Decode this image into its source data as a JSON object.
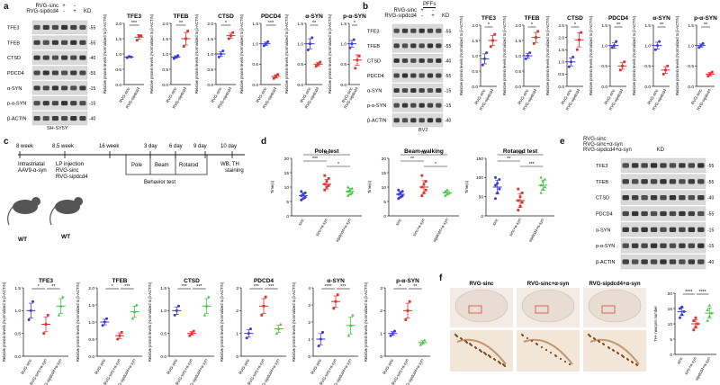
{
  "panel_a": {
    "letter": "a",
    "legend_rows": [
      "RVG-sinc",
      "RVG-sipdcd4"
    ],
    "legend_signs": [
      [
        "+",
        "-"
      ],
      [
        "-",
        "+"
      ]
    ],
    "kd": "KD",
    "blot_labels": [
      "TFE3",
      "TFEB",
      "CTSD",
      "PDCD4",
      "α-SYN",
      "p-α-SYN",
      "β-ACTIN"
    ],
    "mw": [
      "-55",
      "-55",
      "-40",
      "-55",
      "-15",
      "-15",
      "-40"
    ],
    "cell_line": "SH-SY5Y",
    "ylabel": "Relative protein levels (Normalized to β-ACTIN)",
    "xcats": [
      "RVG-sinc",
      "RVG-sipdcd4"
    ]
  },
  "panel_b": {
    "letter": "b",
    "pffs": "PFFs",
    "legend_rows": [
      "RVG-sinc",
      "RVG-sipdcd4"
    ],
    "legend_signs": [
      [
        "+",
        "-"
      ],
      [
        "-",
        "+"
      ]
    ],
    "kd": "KD",
    "blot_labels": [
      "TFE3",
      "TFEB",
      "CTSD",
      "PDCD4",
      "α-SYN",
      "p-α-SYN",
      "β-ACTIN"
    ],
    "mw": [
      "-55",
      "-55",
      "-40",
      "-55",
      "-15",
      "-15",
      "-40"
    ],
    "cell_line": "BV2",
    "ylabel": "Relative protein levels (Normalized to β-ACTIN)",
    "xcats": [
      "RVG-sinc",
      "RVG-sipdcd4"
    ]
  },
  "panel_c": {
    "letter": "c",
    "weeks": [
      "8 week",
      "8.5 week",
      "16 week",
      "3 day",
      "6 day",
      "9 day",
      "10 day"
    ],
    "intrastriatal": [
      "Intrastriatal",
      "AAV9-α-syn"
    ],
    "lp": [
      "LP injection",
      "RVG-sinc",
      "RVG-sipdcd4"
    ],
    "tests": [
      "Pole",
      "Beam",
      "Rotarod"
    ],
    "behavior": "Behavior test",
    "wb": [
      "WB, TH",
      "staining"
    ],
    "wt": "WT"
  },
  "panel_d": {
    "letter": "d",
    "ylabel": "Time(s)",
    "xcats": [
      "sinc",
      "sinc+α-syn",
      "sipdcd4+α-syn"
    ]
  },
  "panel_e": {
    "letter": "e",
    "legend_rows": [
      "RVG-sinc",
      "RVG-sinc+α-syn",
      "RVG-sipdcd4+α-syn"
    ],
    "kd": "KD",
    "blot_labels": [
      "TFE3",
      "TFEB",
      "CTSD",
      "PDCD4",
      "α-SYN",
      "p-α-SYN",
      "β-ACTIN"
    ],
    "mw": [
      "-55",
      "-55",
      "-40",
      "-55",
      "-15",
      "-15",
      "-40"
    ]
  },
  "panel_f": {
    "letter": "f",
    "cols": [
      "RVG-sinc",
      "RVG-sinc+α-syn",
      "RVG-sipdcd4+α-syn"
    ],
    "ylabel": "TH+ neurons number",
    "xcats": [
      "sinc",
      "sinc+α-syn",
      "sipdcd4+α-syn"
    ],
    "sig": "****"
  },
  "chart_data": [
    {
      "id": "a-TFE3",
      "type": "scatter",
      "title": "TFE3",
      "categories": [
        "RVG-sinc",
        "RVG-sipdcd4"
      ],
      "ylim": [
        0,
        2.0
      ],
      "ticks": [
        "0.0",
        "0.5",
        "1.0",
        "1.5",
        "2.0"
      ],
      "means": [
        0.9,
        1.55
      ],
      "points": [
        [
          0.88,
          0.92,
          0.9
        ],
        [
          1.45,
          1.6,
          1.6
        ]
      ],
      "sig": "***",
      "colors": [
        "#3a3ad8",
        "#e03030"
      ]
    },
    {
      "id": "a-TFEB",
      "type": "scatter",
      "title": "TFEB",
      "categories": [
        "RVG-sinc",
        "RVG-sipdcd4"
      ],
      "ylim": [
        0,
        2.0
      ],
      "ticks": [
        "0.0",
        "0.5",
        "1.0",
        "1.5",
        "2.0"
      ],
      "means": [
        0.9,
        1.5
      ],
      "points": [
        [
          0.85,
          0.9,
          0.95
        ],
        [
          1.25,
          1.5,
          1.75
        ]
      ],
      "sig": "**",
      "colors": [
        "#3a3ad8",
        "#e03030"
      ]
    },
    {
      "id": "a-CTSD",
      "type": "scatter",
      "title": "CTSD",
      "categories": [
        "RVG-sinc",
        "RVG-sipdcd4"
      ],
      "ylim": [
        0,
        2.0
      ],
      "ticks": [
        "0.0",
        "0.5",
        "1.0",
        "1.5",
        "2.0"
      ],
      "means": [
        1.0,
        1.6
      ],
      "points": [
        [
          0.9,
          1.0,
          1.1
        ],
        [
          1.5,
          1.6,
          1.7
        ]
      ],
      "sig": "*",
      "colors": [
        "#3a3ad8",
        "#e03030"
      ]
    },
    {
      "id": "a-PDCD4",
      "type": "scatter",
      "title": "PDCD4",
      "categories": [
        "RVG-sinc",
        "RVG-sipdcd4"
      ],
      "ylim": [
        0,
        1.5
      ],
      "ticks": [
        "0.0",
        "0.5",
        "1.0",
        "1.5"
      ],
      "means": [
        1.0,
        0.2
      ],
      "points": [
        [
          0.95,
          1.0,
          1.05
        ],
        [
          0.15,
          0.2,
          0.25
        ]
      ],
      "sig": "***",
      "colors": [
        "#3a3ad8",
        "#e03030"
      ]
    },
    {
      "id": "a-aSYN",
      "type": "scatter",
      "title": "α-SYN",
      "categories": [
        "RVG-sinc",
        "RVG-sipdcd4"
      ],
      "ylim": [
        0,
        1.5
      ],
      "ticks": [
        "0.0",
        "0.5",
        "1.0",
        "1.5"
      ],
      "means": [
        1.0,
        0.5
      ],
      "points": [
        [
          0.85,
          1.0,
          1.15
        ],
        [
          0.45,
          0.5,
          0.55
        ]
      ],
      "sig": "**",
      "colors": [
        "#3a3ad8",
        "#e03030"
      ]
    },
    {
      "id": "a-paSYN",
      "type": "scatter",
      "title": "p-α-SYN",
      "categories": [
        "RVG-sinc",
        "RVG-sipdcd4"
      ],
      "ylim": [
        0,
        1.5
      ],
      "ticks": [
        "0.0",
        "0.5",
        "1.0",
        "1.5"
      ],
      "means": [
        1.0,
        0.6
      ],
      "points": [
        [
          0.9,
          1.0,
          1.1
        ],
        [
          0.4,
          0.6,
          0.7
        ]
      ],
      "sig": "*",
      "colors": [
        "#3a3ad8",
        "#e03030"
      ]
    },
    {
      "id": "b-TFE3",
      "type": "scatter",
      "title": "TFE3",
      "categories": [
        "RVG-sinc",
        "RVG-sipdcd4"
      ],
      "ylim": [
        0,
        2.0
      ],
      "ticks": [
        "0.0",
        "0.5",
        "1.0",
        "1.5",
        "2.0"
      ],
      "means": [
        0.9,
        1.5
      ],
      "points": [
        [
          0.7,
          0.9,
          1.1
        ],
        [
          1.3,
          1.5,
          1.7
        ]
      ],
      "sig": "*",
      "colors": [
        "#3a3ad8",
        "#e03030"
      ]
    },
    {
      "id": "b-TFEB",
      "type": "scatter",
      "title": "TFEB",
      "categories": [
        "RVG-sinc",
        "RVG-sipdcd4"
      ],
      "ylim": [
        0,
        2.0
      ],
      "ticks": [
        "0.0",
        "0.5",
        "1.0",
        "1.5",
        "2.0"
      ],
      "means": [
        1.0,
        1.6
      ],
      "points": [
        [
          0.9,
          1.0,
          1.1
        ],
        [
          1.4,
          1.6,
          1.8
        ]
      ],
      "sig": "*",
      "colors": [
        "#3a3ad8",
        "#e03030"
      ]
    },
    {
      "id": "b-CTSD",
      "type": "scatter",
      "title": "CTSD",
      "categories": [
        "RVG-sinc",
        "RVG-sipdcd4"
      ],
      "ylim": [
        0,
        2.5
      ],
      "ticks": [
        "0.0",
        "0.5",
        "1.0",
        "1.5",
        "2.0",
        "2.5"
      ],
      "means": [
        1.0,
        1.9
      ],
      "points": [
        [
          0.8,
          1.0,
          1.2
        ],
        [
          1.5,
          1.9,
          2.2
        ]
      ],
      "sig": "*",
      "colors": [
        "#3a3ad8",
        "#e03030"
      ]
    },
    {
      "id": "b-PDCD4",
      "type": "scatter",
      "title": "PDCD4",
      "categories": [
        "RVG-sinc",
        "RVG-sipdcd4"
      ],
      "ylim": [
        0,
        1.5
      ],
      "ticks": [
        "0.0",
        "0.5",
        "1.0",
        "1.5"
      ],
      "means": [
        1.0,
        0.5
      ],
      "points": [
        [
          0.95,
          1.0,
          1.1
        ],
        [
          0.4,
          0.5,
          0.6
        ]
      ],
      "sig": "**",
      "colors": [
        "#3a3ad8",
        "#e03030"
      ]
    },
    {
      "id": "b-aSYN",
      "type": "scatter",
      "title": "α-SYN",
      "categories": [
        "RVG-sinc",
        "RVG-sipdcd4"
      ],
      "ylim": [
        0,
        1.5
      ],
      "ticks": [
        "0.0",
        "0.5",
        "1.0",
        "1.5"
      ],
      "means": [
        1.0,
        0.4
      ],
      "points": [
        [
          0.9,
          1.0,
          1.1
        ],
        [
          0.3,
          0.4,
          0.5
        ]
      ],
      "sig": "**",
      "colors": [
        "#3a3ad8",
        "#e03030"
      ]
    },
    {
      "id": "b-paSYN",
      "type": "scatter",
      "title": "p-α-SYN",
      "categories": [
        "RVG-sinc",
        "RVG-sipdcd4"
      ],
      "ylim": [
        0,
        1.5
      ],
      "ticks": [
        "0.0",
        "0.5",
        "1.0",
        "1.5"
      ],
      "means": [
        1.0,
        0.3
      ],
      "points": [
        [
          0.95,
          1.0,
          1.05
        ],
        [
          0.25,
          0.3,
          0.35
        ]
      ],
      "sig": "**",
      "colors": [
        "#3a3ad8",
        "#e03030"
      ]
    },
    {
      "id": "d-Pole",
      "type": "scatter",
      "title": "Pole test",
      "categories": [
        "sinc",
        "sinc+α-syn",
        "sipdcd4+α-syn"
      ],
      "ylim": [
        0,
        20
      ],
      "ticks": [
        "0",
        "5",
        "10",
        "15",
        "20"
      ],
      "means": [
        7,
        11,
        8.5
      ],
      "points": [
        [
          5.5,
          6,
          6.5,
          7,
          7.5,
          8,
          8.5
        ],
        [
          9,
          10,
          10.5,
          11,
          12,
          13,
          14
        ],
        [
          7,
          7.5,
          8,
          8.5,
          9,
          9.5,
          10
        ]
      ],
      "sig": [
        "ns",
        "***",
        "*"
      ],
      "colors": [
        "#3a3ad8",
        "#e03030",
        "#3cc43c"
      ]
    },
    {
      "id": "d-Beam",
      "type": "scatter",
      "title": "Beam-walking",
      "categories": [
        "sinc",
        "sinc+α-syn",
        "sipdcd4+α-syn"
      ],
      "ylim": [
        0,
        20
      ],
      "ticks": [
        "0",
        "5",
        "10",
        "15",
        "20"
      ],
      "means": [
        7.5,
        10,
        8
      ],
      "points": [
        [
          6,
          6.5,
          7,
          7.5,
          8,
          8.5,
          9
        ],
        [
          7,
          8,
          9,
          10,
          11,
          12,
          14
        ],
        [
          7,
          7.5,
          8,
          8.5,
          9
        ]
      ],
      "sig": [
        "ns",
        "**",
        "*"
      ],
      "colors": [
        "#3a3ad8",
        "#e03030",
        "#3cc43c"
      ]
    },
    {
      "id": "d-Rotarod",
      "type": "scatter",
      "title": "Rotarod test",
      "categories": [
        "sinc",
        "sinc+α-syn",
        "sipdcd4+α-syn"
      ],
      "ylim": [
        0,
        150
      ],
      "ticks": [
        "0",
        "50",
        "100",
        "150"
      ],
      "means": [
        75,
        40,
        80
      ],
      "points": [
        [
          45,
          60,
          70,
          80,
          85,
          95,
          100
        ],
        [
          15,
          25,
          35,
          40,
          50,
          60,
          70
        ],
        [
          60,
          70,
          75,
          80,
          90,
          95,
          100
        ]
      ],
      "sig": [
        "ns",
        "**",
        "***"
      ],
      "colors": [
        "#3a3ad8",
        "#e03030",
        "#3cc43c"
      ]
    },
    {
      "id": "e-TFE3",
      "type": "scatter",
      "title": "TFE3",
      "categories": [
        "RVG-sinc",
        "RVG-sinc+α-syn",
        "RVG-sipdcd4+α-syn"
      ],
      "ylim": [
        0,
        1.5
      ],
      "ticks": [
        "0.0",
        "0.5",
        "1.0",
        "1.5"
      ],
      "means": [
        1.0,
        0.7,
        1.1
      ],
      "points": [
        [
          0.8,
          1.0,
          1.2
        ],
        [
          0.5,
          0.7,
          0.9
        ],
        [
          0.9,
          1.1,
          1.3
        ]
      ],
      "sig": [
        "*",
        "**"
      ],
      "colors": [
        "#3a3ad8",
        "#e03030",
        "#3cc43c"
      ]
    },
    {
      "id": "e-TFEB",
      "type": "scatter",
      "title": "TFEB",
      "categories": [
        "RVG-sinc",
        "RVG-sinc+α-syn",
        "RVG-sipdcd4+α-syn"
      ],
      "ylim": [
        0,
        2.0
      ],
      "ticks": [
        "0.0",
        "0.5",
        "1.0",
        "1.5",
        "2.0"
      ],
      "means": [
        1.0,
        0.6,
        1.3
      ],
      "points": [
        [
          0.9,
          1.0,
          1.1
        ],
        [
          0.5,
          0.6,
          0.7
        ],
        [
          1.1,
          1.3,
          1.5
        ]
      ],
      "sig": [
        "*",
        "***"
      ],
      "colors": [
        "#3a3ad8",
        "#e03030",
        "#3cc43c"
      ]
    },
    {
      "id": "e-CTSD",
      "type": "scatter",
      "title": "CTSD",
      "categories": [
        "RVG-sinc",
        "RVG-sinc+α-syn",
        "RVG-sipdcd4+α-syn"
      ],
      "ylim": [
        0,
        1.5
      ],
      "ticks": [
        "0.0",
        "0.5",
        "1.0",
        "1.5"
      ],
      "means": [
        1.0,
        0.5,
        1.1
      ],
      "points": [
        [
          0.9,
          1.0,
          1.1
        ],
        [
          0.45,
          0.5,
          0.55
        ],
        [
          0.9,
          1.1,
          1.3
        ]
      ],
      "sig": [
        "***",
        "***"
      ],
      "colors": [
        "#3a3ad8",
        "#e03030",
        "#3cc43c"
      ]
    },
    {
      "id": "e-PDCD4",
      "type": "scatter",
      "title": "PDCD4",
      "categories": [
        "RVG-sinc",
        "RVG-sinc+α-syn",
        "RVG-sipdcd4+α-syn"
      ],
      "ylim": [
        0,
        3
      ],
      "ticks": [
        "0",
        "1",
        "2",
        "3"
      ],
      "means": [
        1.0,
        2.2,
        1.2
      ],
      "points": [
        [
          0.8,
          1.0,
          1.2
        ],
        [
          1.8,
          2.2,
          2.6
        ],
        [
          1.0,
          1.2,
          1.4
        ]
      ],
      "sig": [
        "***",
        "***"
      ],
      "colors": [
        "#3a3ad8",
        "#e03030",
        "#3cc43c"
      ]
    },
    {
      "id": "e-aSYN",
      "type": "scatter",
      "title": "α-SYN",
      "categories": [
        "RVG-sinc",
        "RVG-sinc+α-syn",
        "RVG-sipdcd4+α-syn"
      ],
      "ylim": [
        0,
        4
      ],
      "ticks": [
        "0",
        "1",
        "2",
        "3",
        "4"
      ],
      "means": [
        1.0,
        3.2,
        1.8
      ],
      "points": [
        [
          0.6,
          1.0,
          1.4
        ],
        [
          2.8,
          3.2,
          3.6
        ],
        [
          1.2,
          1.8,
          2.4
        ]
      ],
      "sig": [
        "****",
        "***"
      ],
      "colors": [
        "#3a3ad8",
        "#e03030",
        "#3cc43c"
      ]
    },
    {
      "id": "e-paSYN",
      "type": "scatter",
      "title": "p-α-SYN",
      "categories": [
        "RVG-sinc",
        "RVG-sinc+α-syn",
        "RVG-sipdcd4+α-syn"
      ],
      "ylim": [
        0,
        3
      ],
      "ticks": [
        "0",
        "1",
        "2",
        "3"
      ],
      "means": [
        1.0,
        2.0,
        0.6
      ],
      "points": [
        [
          0.9,
          1.0,
          1.1
        ],
        [
          1.6,
          2.0,
          2.4
        ],
        [
          0.5,
          0.6,
          0.7
        ]
      ],
      "sig": [
        "*",
        "**"
      ],
      "colors": [
        "#3a3ad8",
        "#e03030",
        "#3cc43c"
      ]
    },
    {
      "id": "f-TH",
      "type": "scatter",
      "title": "",
      "categories": [
        "sinc",
        "sinc+α-syn",
        "sipdcd4+α-syn"
      ],
      "ylim": [
        0,
        20
      ],
      "ticks": [
        "0",
        "5",
        "10",
        "15",
        "20"
      ],
      "means": [
        14,
        10,
        13.5
      ],
      "points": [
        [
          12,
          13,
          14,
          15,
          15.5
        ],
        [
          8,
          9,
          10,
          11,
          12
        ],
        [
          11,
          12.5,
          13.5,
          14.5,
          16
        ]
      ],
      "sig": [
        "****",
        "****"
      ],
      "colors": [
        "#3a3ad8",
        "#e03030",
        "#3cc43c"
      ]
    }
  ]
}
